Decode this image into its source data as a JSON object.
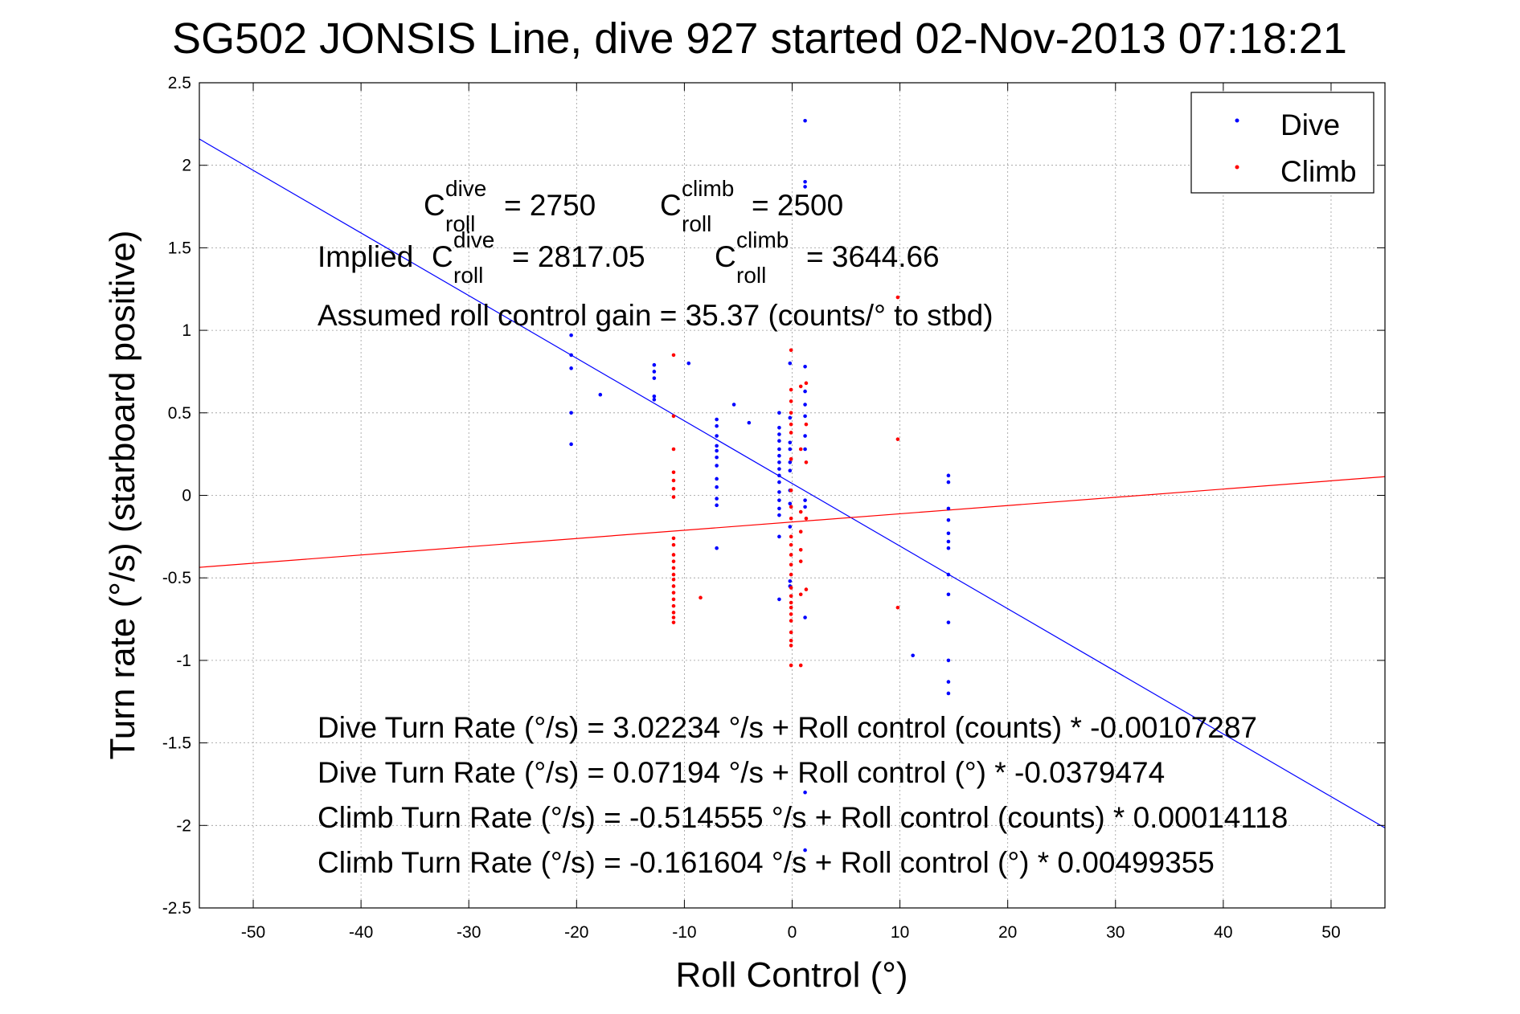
{
  "chart_data": {
    "type": "scatter",
    "title": "SG502 JONSIS Line, dive 927 started 02-Nov-2013 07:18:21",
    "xlabel": "Roll Control (°)",
    "ylabel": "Turn rate (°/s) (starboard positive)",
    "xlim": [
      -55,
      55
    ],
    "ylim": [
      -2.5,
      2.5
    ],
    "xticks": [
      -50,
      -40,
      -30,
      -20,
      -10,
      0,
      10,
      20,
      30,
      40,
      50
    ],
    "yticks": [
      -2.5,
      -2,
      -1.5,
      -1,
      -0.5,
      0,
      0.5,
      1,
      1.5,
      2,
      2.5
    ],
    "xtick_labels": [
      "-50",
      "-40",
      "-30",
      "-20",
      "-10",
      "0",
      "10",
      "20",
      "30",
      "40",
      "50"
    ],
    "ytick_labels": [
      "-2.5",
      "-2",
      "-1.5",
      "-1",
      "-0.5",
      "0",
      "0.5",
      "1",
      "1.5",
      "2",
      "2.5"
    ],
    "grid": true,
    "legend_position": "top-right",
    "legend": [
      {
        "name": "Dive",
        "color": "#0000ff"
      },
      {
        "name": "Climb",
        "color": "#ff0000"
      }
    ],
    "series": [
      {
        "name": "Dive",
        "color": "#0000ff",
        "points": [
          [
            1.2,
            2.27
          ],
          [
            1.2,
            1.9
          ],
          [
            1.2,
            1.87
          ],
          [
            -20.5,
            0.97
          ],
          [
            -20.5,
            0.85
          ],
          [
            -20.5,
            0.77
          ],
          [
            -20.5,
            0.5
          ],
          [
            -20.5,
            0.31
          ],
          [
            -17.8,
            0.61
          ],
          [
            -12.8,
            0.79
          ],
          [
            -12.8,
            0.75
          ],
          [
            -12.8,
            0.71
          ],
          [
            -12.8,
            0.6
          ],
          [
            -12.8,
            0.58
          ],
          [
            -9.6,
            0.8
          ],
          [
            -5.4,
            0.55
          ],
          [
            -4,
            0.44
          ],
          [
            -7,
            0.46
          ],
          [
            -7,
            0.42
          ],
          [
            -7,
            0.36
          ],
          [
            -7,
            0.3
          ],
          [
            -7,
            0.27
          ],
          [
            -7,
            0.23
          ],
          [
            -7,
            0.18
          ],
          [
            -7,
            0.1
          ],
          [
            -7,
            0.05
          ],
          [
            -7,
            -0.02
          ],
          [
            -7,
            -0.06
          ],
          [
            -7,
            -0.32
          ],
          [
            -1.2,
            0.5
          ],
          [
            -1.2,
            0.41
          ],
          [
            -1.2,
            0.37
          ],
          [
            -1.2,
            0.33
          ],
          [
            -1.2,
            0.28
          ],
          [
            -1.2,
            0.24
          ],
          [
            -1.2,
            0.2
          ],
          [
            -1.2,
            0.16
          ],
          [
            -1.2,
            0.12
          ],
          [
            -1.2,
            0.08
          ],
          [
            -1.2,
            0.02
          ],
          [
            -1.2,
            -0.03
          ],
          [
            -1.2,
            -0.08
          ],
          [
            -1.2,
            -0.12
          ],
          [
            -1.2,
            -0.25
          ],
          [
            -1.2,
            -0.63
          ],
          [
            -0.2,
            0.8
          ],
          [
            -0.2,
            0.47
          ],
          [
            -0.2,
            0.32
          ],
          [
            -0.2,
            0.28
          ],
          [
            -0.2,
            0.2
          ],
          [
            -0.2,
            0.15
          ],
          [
            -0.2,
            0.03
          ],
          [
            -0.2,
            -0.05
          ],
          [
            -0.2,
            -0.19
          ],
          [
            -0.2,
            -0.52
          ],
          [
            -0.2,
            -0.55
          ],
          [
            1.2,
            0.78
          ],
          [
            1.2,
            0.63
          ],
          [
            1.2,
            0.55
          ],
          [
            1.2,
            0.48
          ],
          [
            1.2,
            0.36
          ],
          [
            1.2,
            0.28
          ],
          [
            1.2,
            -0.03
          ],
          [
            1.2,
            -0.07
          ],
          [
            1.2,
            -0.74
          ],
          [
            1.2,
            -1.8
          ],
          [
            1.2,
            -2.15
          ],
          [
            11.2,
            -0.97
          ],
          [
            14.5,
            0.12
          ],
          [
            14.5,
            0.08
          ],
          [
            14.5,
            -0.08
          ],
          [
            14.5,
            -0.15
          ],
          [
            14.5,
            -0.23
          ],
          [
            14.5,
            -0.28
          ],
          [
            14.5,
            -0.32
          ],
          [
            14.5,
            -0.48
          ],
          [
            14.5,
            -0.6
          ],
          [
            14.5,
            -0.77
          ],
          [
            14.5,
            -1.0
          ],
          [
            14.5,
            -1.13
          ],
          [
            14.5,
            -1.2
          ]
        ]
      },
      {
        "name": "Climb",
        "color": "#ff0000",
        "points": [
          [
            9.8,
            1.2
          ],
          [
            9.8,
            0.34
          ],
          [
            9.8,
            -0.68
          ],
          [
            -8.5,
            -0.62
          ],
          [
            -11,
            0.85
          ],
          [
            -11,
            0.48
          ],
          [
            -11,
            0.28
          ],
          [
            -11,
            0.14
          ],
          [
            -11,
            0.09
          ],
          [
            -11,
            0.04
          ],
          [
            -11,
            -0.01
          ],
          [
            -11,
            -0.26
          ],
          [
            -11,
            -0.3
          ],
          [
            -11,
            -0.36
          ],
          [
            -11,
            -0.4
          ],
          [
            -11,
            -0.44
          ],
          [
            -11,
            -0.48
          ],
          [
            -11,
            -0.51
          ],
          [
            -11,
            -0.55
          ],
          [
            -11,
            -0.59
          ],
          [
            -11,
            -0.63
          ],
          [
            -11,
            -0.67
          ],
          [
            -11,
            -0.71
          ],
          [
            -11,
            -0.74
          ],
          [
            -11,
            -0.77
          ],
          [
            -0.1,
            0.88
          ],
          [
            -0.1,
            0.64
          ],
          [
            -0.1,
            0.57
          ],
          [
            -0.1,
            0.5
          ],
          [
            -0.1,
            0.43
          ],
          [
            -0.1,
            0.38
          ],
          [
            -0.1,
            0.22
          ],
          [
            -0.1,
            0.03
          ],
          [
            -0.1,
            -0.07
          ],
          [
            -0.1,
            -0.14
          ],
          [
            -0.1,
            -0.25
          ],
          [
            -0.1,
            -0.3
          ],
          [
            -0.1,
            -0.36
          ],
          [
            -0.1,
            -0.42
          ],
          [
            -0.1,
            -0.48
          ],
          [
            -0.1,
            -0.56
          ],
          [
            -0.1,
            -0.61
          ],
          [
            -0.1,
            -0.65
          ],
          [
            -0.1,
            -0.68
          ],
          [
            -0.1,
            -0.72
          ],
          [
            -0.1,
            -0.76
          ],
          [
            -0.1,
            -0.83
          ],
          [
            -0.1,
            -0.88
          ],
          [
            -0.1,
            -0.91
          ],
          [
            -0.1,
            -1.03
          ],
          [
            0.8,
            0.66
          ],
          [
            0.8,
            0.28
          ],
          [
            0.8,
            -0.1
          ],
          [
            0.8,
            -0.22
          ],
          [
            0.8,
            -0.33
          ],
          [
            0.8,
            -0.4
          ],
          [
            0.8,
            -0.6
          ],
          [
            0.8,
            -1.03
          ],
          [
            1.3,
            0.68
          ],
          [
            1.3,
            0.43
          ],
          [
            1.3,
            0.2
          ],
          [
            1.3,
            -0.14
          ],
          [
            1.3,
            -0.57
          ]
        ]
      }
    ],
    "fit_lines": [
      {
        "name": "Dive fit",
        "color": "#0000ff",
        "intercept": 0.07194,
        "slope": -0.0379474
      },
      {
        "name": "Climb fit",
        "color": "#ff0000",
        "intercept": -0.161604,
        "slope": 0.00499355
      }
    ]
  },
  "annotations": {
    "c_roll_dive": {
      "C": "C",
      "sup": "dive",
      "sub": "roll",
      "value": "= 2750"
    },
    "c_roll_climb": {
      "C": "C",
      "sup": "climb",
      "sub": "roll",
      "value": "= 2500"
    },
    "implied_prefix": "Implied",
    "implied_dive": {
      "C": "C",
      "sup": "dive",
      "sub": "roll",
      "value": "= 2817.05"
    },
    "implied_climb": {
      "C": "C",
      "sup": "climb",
      "sub": "roll",
      "value": "= 3644.66"
    },
    "gain": "Assumed roll control gain = 35.37 (counts/° to stbd)",
    "fit_eq_1": "Dive Turn Rate (°/s) = 3.02234 °/s + Roll control (counts) * -0.00107287",
    "fit_eq_2": "Dive Turn Rate (°/s) = 0.07194 °/s + Roll control (°) * -0.0379474",
    "fit_eq_3": "Climb Turn Rate (°/s) = -0.514555 °/s + Roll control (counts) * 0.00014118",
    "fit_eq_4": "Climb Turn Rate (°/s) = -0.161604 °/s + Roll control (°) * 0.00499355"
  }
}
